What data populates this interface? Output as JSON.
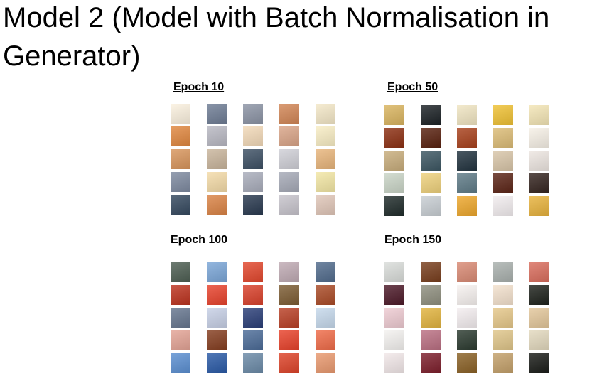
{
  "slide": {
    "title": "Model 2 (Model with Batch Normalisation in Generator)"
  },
  "panels": [
    {
      "label": "Epoch 10",
      "tiles": [
        [
          "#fbf1df",
          "#6f7d95",
          "#8c94a5",
          "#d28656",
          "#f4e8c8"
        ],
        [
          "#e0873f",
          "#b8b8c2",
          "#f2d9b8",
          "#d9a487",
          "#f8edc4"
        ],
        [
          "#d8955c",
          "#c9b59c",
          "#3d5064",
          "#cfcfd6",
          "#e8b57b"
        ],
        [
          "#7e8aa0",
          "#f4dba8",
          "#a9adbb",
          "#a6aab7",
          "#f3e7a5"
        ],
        [
          "#35495f",
          "#db8446",
          "#2a3a50",
          "#c7c4cc",
          "#e1c7b9"
        ]
      ]
    },
    {
      "label": "Epoch 50",
      "tiles": [
        [
          "#d9b45f",
          "#1c2226",
          "#f0e5c2",
          "#efc134",
          "#f3e5b5"
        ],
        [
          "#8c2f12",
          "#59210f",
          "#a8411c",
          "#dcbc76",
          "#f6f0e6"
        ],
        [
          "#c8ad7c",
          "#3d5763",
          "#233440",
          "#d9c6a9",
          "#ede6e1"
        ],
        [
          "#c9d4c6",
          "#eed17c",
          "#5e7a86",
          "#5b2416",
          "#34241f"
        ],
        [
          "#1f2b2a",
          "#c8ced3",
          "#eda72c",
          "#f2edef",
          "#e7b23c"
        ]
      ]
    },
    {
      "label": "Epoch 100",
      "tiles": [
        [
          "#4d5e52",
          "#7ba6d7",
          "#e2472d",
          "#bfaab3",
          "#516b8c"
        ],
        [
          "#bc331f",
          "#e8432d",
          "#d9412b",
          "#7c5c33",
          "#aa4b27"
        ],
        [
          "#66768f",
          "#c7d0e6",
          "#2b3f78",
          "#b94026",
          "#c6d9ec"
        ],
        [
          "#e3a395",
          "#843d1f",
          "#4b6b97",
          "#e7412a",
          "#ef6b48"
        ],
        [
          "#5b8fd1",
          "#2a5aa6",
          "#6b8aa7",
          "#dd4329",
          "#e9996f"
        ]
      ]
    },
    {
      "label": "Epoch 150",
      "tiles": [
        [
          "#d9dcd9",
          "#783e1d",
          "#d98a74",
          "#a9b0ad",
          "#d96d5d"
        ],
        [
          "#4d1a29",
          "#8f8f7f",
          "#f7f2f0",
          "#f3e1cd",
          "#1e221c"
        ],
        [
          "#eecbd2",
          "#e2b43f",
          "#f4eef0",
          "#e6c88a",
          "#e3c79b"
        ],
        [
          "#f3f1ef",
          "#ba6f82",
          "#2b3a2f",
          "#dfc589",
          "#e2d8bd"
        ],
        [
          "#f1e7e8",
          "#7d1f2c",
          "#8a6126",
          "#c3a06a",
          "#1a1c18"
        ]
      ]
    }
  ]
}
